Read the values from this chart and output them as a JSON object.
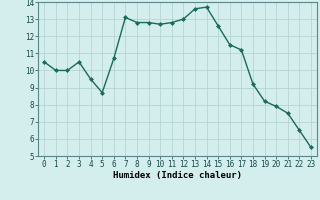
{
  "x": [
    0,
    1,
    2,
    3,
    4,
    5,
    6,
    7,
    8,
    9,
    10,
    11,
    12,
    13,
    14,
    15,
    16,
    17,
    18,
    19,
    20,
    21,
    22,
    23
  ],
  "y": [
    10.5,
    10.0,
    10.0,
    10.5,
    9.5,
    8.7,
    10.7,
    13.1,
    12.8,
    12.8,
    12.7,
    12.8,
    13.0,
    13.6,
    13.7,
    12.6,
    11.5,
    11.2,
    9.2,
    8.2,
    7.9,
    7.5,
    6.5,
    5.5
  ],
  "line_color": "#1a6b5a",
  "marker": "D",
  "marker_size": 2.0,
  "bg_color": "#d4eded",
  "grid_color": "#b0d0d0",
  "xlabel": "Humidex (Indice chaleur)",
  "ylabel": "",
  "ylim": [
    5,
    14
  ],
  "xlim_min": -0.5,
  "xlim_max": 23.5,
  "yticks": [
    5,
    6,
    7,
    8,
    9,
    10,
    11,
    12,
    13,
    14
  ],
  "xticks": [
    0,
    1,
    2,
    3,
    4,
    5,
    6,
    7,
    8,
    9,
    10,
    11,
    12,
    13,
    14,
    15,
    16,
    17,
    18,
    19,
    20,
    21,
    22,
    23
  ],
  "xlabel_fontsize": 6.5,
  "tick_fontsize": 5.5,
  "line_width": 1.0,
  "font_family": "monospace"
}
